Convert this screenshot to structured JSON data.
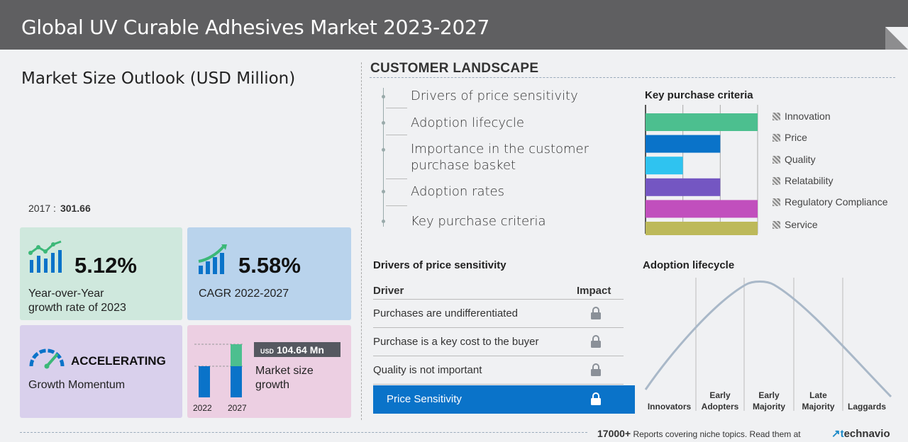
{
  "header": {
    "title": "Global UV Curable Adhesives Market 2023-2027"
  },
  "left": {
    "title": "Market Size Outlook (USD Million)",
    "base_year": "2017 :",
    "base_value": "301.66",
    "yoy": {
      "value": "5.12%",
      "label_line1": "Year-over-Year",
      "label_line2": "growth rate of 2023",
      "icon": "growth-bar-chart-icon"
    },
    "cagr": {
      "value": "5.58%",
      "label": "CAGR 2022-2027",
      "icon": "rising-bars-icon"
    },
    "momentum": {
      "value": "ACCELERATING",
      "label": "Growth Momentum",
      "icon": "speedometer-icon"
    },
    "market_size": {
      "badge_unit": "USD",
      "badge_value": "104.64 Mn",
      "label_line1": "Market size",
      "label_line2": "growth",
      "year_start": "2022",
      "year_end": "2027"
    }
  },
  "customer_landscape": {
    "title": "CUSTOMER LANDSCAPE",
    "items": [
      "Drivers of price sensitivity",
      "Adoption lifecycle",
      "Importance in the customer purchase basket",
      "Adoption rates",
      "Key purchase criteria"
    ]
  },
  "key_purchase": {
    "title": "Key purchase criteria",
    "legend": [
      "Innovation",
      "Price",
      "Quality",
      "Relatability",
      "Regulatory Compliance",
      "Service"
    ]
  },
  "drivers": {
    "title": "Drivers of price sensitivity",
    "col_driver": "Driver",
    "col_impact": "Impact",
    "rows": [
      "Purchases are undifferentiated",
      "Purchase is a key cost to the buyer",
      "Quality is not important",
      "Price Sensitivity"
    ]
  },
  "adoption": {
    "title": "Adoption lifecycle",
    "stages": [
      [
        "Innovators"
      ],
      [
        "Early",
        "Adopters"
      ],
      [
        "Early",
        "Majority"
      ],
      [
        "Late",
        "Majority"
      ],
      [
        "Laggards"
      ]
    ]
  },
  "footer": {
    "count": "17000+",
    "text": "Reports covering niche topics. Read them at",
    "logo_t": "t",
    "logo_rest": "echnavio"
  },
  "chart_data": {
    "type": "bar",
    "title": "Key purchase criteria",
    "categories": [
      "Innovation",
      "Price",
      "Quality",
      "Relatability",
      "Regulatory Compliance",
      "Service"
    ],
    "values": [
      3,
      2,
      1,
      2,
      3,
      3
    ],
    "xlim": [
      0,
      3
    ],
    "grid": true,
    "colors": [
      "#4cbf8f",
      "#0a73c9",
      "#2fc3f0",
      "#7456c2",
      "#c14fbd",
      "#bdb95a"
    ]
  }
}
